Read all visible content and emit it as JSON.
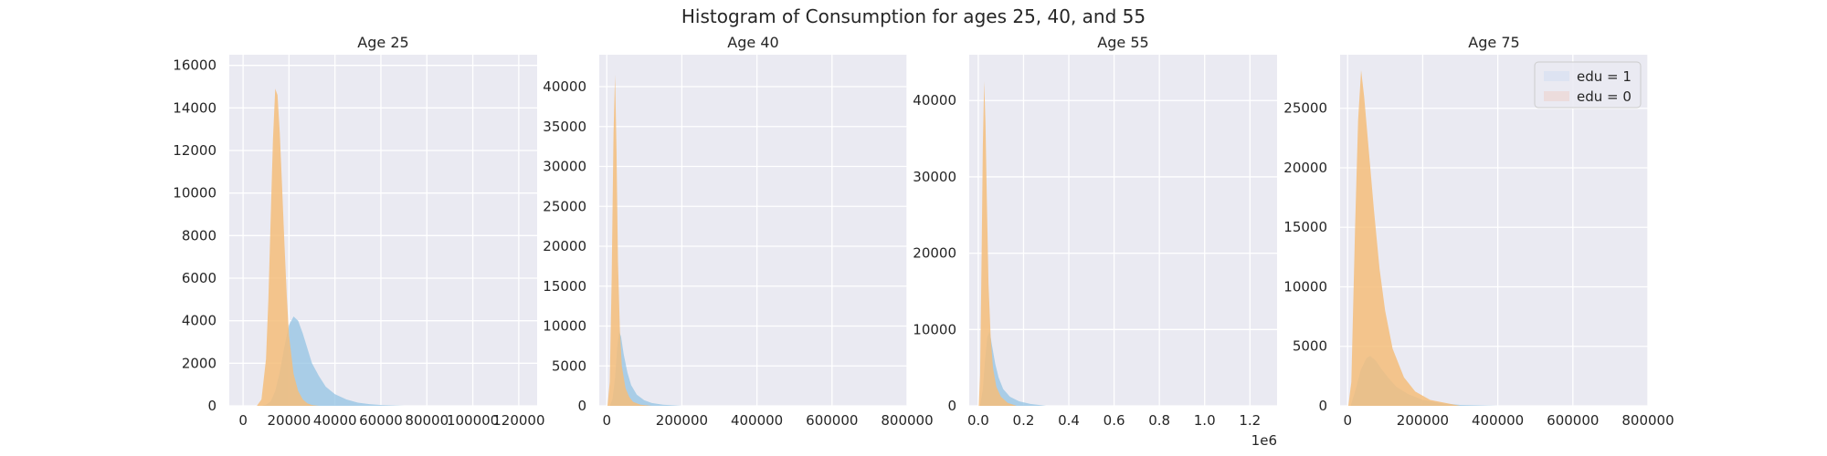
{
  "figure": {
    "title": "Histogram of Consumption for ages 25, 40, and 55",
    "background": "#ffffff",
    "axes_facecolor": "#eaeaf2",
    "grid_color": "#ffffff"
  },
  "chart_data": [
    {
      "type": "histogram",
      "title": "Age 25",
      "xlim": [
        -6000,
        128000
      ],
      "ylim": [
        0,
        16500
      ],
      "xticks": [
        0,
        20000,
        40000,
        60000,
        80000,
        100000,
        120000
      ],
      "xtick_labels": [
        "0",
        "20000",
        "40000",
        "60000",
        "80000",
        "100000",
        "120000"
      ],
      "yticks": [
        0,
        2000,
        4000,
        6000,
        8000,
        10000,
        12000,
        14000,
        16000
      ],
      "ytick_labels": [
        "0",
        "2000",
        "4000",
        "6000",
        "8000",
        "10000",
        "12000",
        "14000",
        "16000"
      ],
      "grid": true,
      "series": [
        {
          "label": "edu = 1",
          "color": "#93c3e3",
          "opacity": 0.75,
          "x": [
            8000,
            10000,
            12000,
            14000,
            16000,
            18000,
            20000,
            22000,
            24000,
            26000,
            28000,
            30000,
            33000,
            36000,
            40000,
            45000,
            50000,
            55000,
            60000,
            70000
          ],
          "y": [
            0,
            50,
            200,
            700,
            1600,
            2800,
            3800,
            4200,
            4000,
            3400,
            2700,
            2000,
            1400,
            900,
            550,
            300,
            150,
            80,
            40,
            0
          ]
        },
        {
          "label": "edu = 0",
          "color": "#f4bd7a",
          "opacity": 0.85,
          "x": [
            6000,
            8000,
            10000,
            11000,
            12000,
            13000,
            14000,
            15000,
            16000,
            17000,
            18000,
            19000,
            20000,
            22000,
            24000,
            26000,
            28000,
            30000,
            33000
          ],
          "y": [
            0,
            300,
            2200,
            5000,
            8800,
            12500,
            14900,
            14600,
            12800,
            10300,
            7600,
            5200,
            3300,
            1500,
            700,
            300,
            120,
            40,
            0
          ]
        }
      ]
    },
    {
      "type": "histogram",
      "title": "Age 40",
      "xlim": [
        -20000,
        800000
      ],
      "ylim": [
        0,
        44000
      ],
      "xticks": [
        0,
        200000,
        400000,
        600000,
        800000
      ],
      "xtick_labels": [
        "0",
        "200000",
        "400000",
        "600000",
        "800000"
      ],
      "yticks": [
        0,
        5000,
        10000,
        15000,
        20000,
        25000,
        30000,
        35000,
        40000
      ],
      "ytick_labels": [
        "0",
        "5000",
        "10000",
        "15000",
        "20000",
        "25000",
        "30000",
        "35000",
        "40000"
      ],
      "grid": true,
      "series": [
        {
          "label": "edu = 1",
          "color": "#93c3e3",
          "opacity": 0.75,
          "x": [
            8000,
            15000,
            22000,
            28000,
            33000,
            38000,
            45000,
            55000,
            65000,
            80000,
            100000,
            120000,
            150000,
            200000
          ],
          "y": [
            0,
            800,
            3500,
            7500,
            9300,
            8700,
            6500,
            4200,
            2600,
            1400,
            700,
            350,
            150,
            0
          ]
        },
        {
          "label": "edu = 0",
          "color": "#f4bd7a",
          "opacity": 0.85,
          "x": [
            2000,
            8000,
            13000,
            18000,
            22000,
            26000,
            30000,
            35000,
            40000,
            50000,
            60000,
            70000,
            90000,
            120000
          ],
          "y": [
            0,
            3000,
            16000,
            34000,
            41500,
            32000,
            18000,
            9500,
            5000,
            2200,
            1100,
            500,
            150,
            0
          ]
        }
      ]
    },
    {
      "type": "histogram",
      "title": "Age 55",
      "xlim": [
        -40000,
        1320000
      ],
      "ylim": [
        0,
        46000
      ],
      "xticks": [
        0,
        200000,
        400000,
        600000,
        800000,
        1000000,
        1200000
      ],
      "xtick_labels": [
        "0.0",
        "0.2",
        "0.4",
        "0.6",
        "0.8",
        "1.0",
        "1.2"
      ],
      "offset_label": "1e6",
      "yticks": [
        0,
        10000,
        20000,
        30000,
        40000
      ],
      "ytick_labels": [
        "0",
        "10000",
        "20000",
        "30000",
        "40000"
      ],
      "grid": true,
      "series": [
        {
          "label": "edu = 1",
          "color": "#93c3e3",
          "opacity": 0.75,
          "x": [
            8000,
            20000,
            30000,
            40000,
            50000,
            60000,
            75000,
            90000,
            110000,
            140000,
            180000,
            230000,
            300000
          ],
          "y": [
            0,
            2200,
            6000,
            9000,
            9800,
            8000,
            5500,
            3700,
            2200,
            1200,
            600,
            250,
            0
          ]
        },
        {
          "label": "edu = 0",
          "color": "#f4bd7a",
          "opacity": 0.85,
          "x": [
            2000,
            8000,
            15000,
            20000,
            26000,
            32000,
            38000,
            45000,
            55000,
            65000,
            80000,
            100000,
            130000,
            170000
          ],
          "y": [
            0,
            4000,
            20000,
            34000,
            42500,
            37000,
            27000,
            16000,
            9000,
            5000,
            2500,
            1200,
            400,
            0
          ]
        }
      ]
    },
    {
      "type": "histogram",
      "title": "Age 75",
      "xlim": [
        -20000,
        800000
      ],
      "ylim": [
        0,
        29500
      ],
      "xticks": [
        0,
        200000,
        400000,
        600000,
        800000
      ],
      "xtick_labels": [
        "0",
        "200000",
        "400000",
        "600000",
        "800000"
      ],
      "yticks": [
        0,
        5000,
        10000,
        15000,
        20000,
        25000
      ],
      "ytick_labels": [
        "0",
        "5000",
        "10000",
        "15000",
        "20000",
        "25000"
      ],
      "grid": true,
      "legend": {
        "loc": "upper right",
        "entries": [
          "edu = 1",
          "edu = 0"
        ],
        "colors": [
          "#dde3f2",
          "#ecdcdc"
        ]
      },
      "series": [
        {
          "label": "edu = 1",
          "color": "#93c3e3",
          "opacity": 0.75,
          "x": [
            8000,
            20000,
            35000,
            50000,
            60000,
            75000,
            90000,
            110000,
            130000,
            160000,
            200000,
            250000,
            300000,
            400000
          ],
          "y": [
            0,
            1200,
            3000,
            4000,
            4200,
            3800,
            3100,
            2300,
            1600,
            1000,
            500,
            220,
            80,
            0
          ]
        },
        {
          "label": "edu = 0",
          "color": "#f4bd7a",
          "opacity": 0.85,
          "x": [
            2000,
            10000,
            20000,
            28000,
            36000,
            44000,
            55000,
            70000,
            85000,
            100000,
            120000,
            150000,
            180000,
            220000,
            300000
          ],
          "y": [
            0,
            2000,
            15000,
            24000,
            28200,
            26000,
            22000,
            16500,
            11500,
            8000,
            4800,
            2400,
            1200,
            500,
            0
          ]
        }
      ]
    }
  ]
}
